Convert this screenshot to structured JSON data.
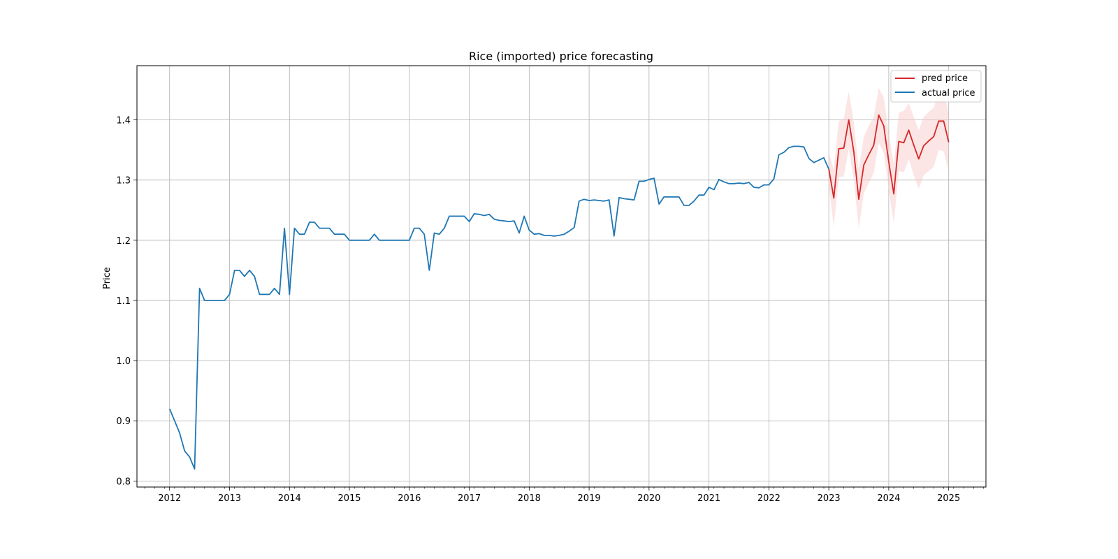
{
  "chart_data": {
    "type": "line",
    "title": "Rice (imported) price forecasting",
    "xlabel": "",
    "ylabel": "Price",
    "xlim": [
      "2011-06-15",
      "2025-08-15"
    ],
    "ylim": [
      0.79,
      1.49
    ],
    "x_ticks": [
      "2012",
      "2013",
      "2014",
      "2015",
      "2016",
      "2017",
      "2018",
      "2019",
      "2020",
      "2021",
      "2022",
      "2023",
      "2024",
      "2025"
    ],
    "y_ticks": [
      "0.8",
      "0.9",
      "1.0",
      "1.1",
      "1.2",
      "1.3",
      "1.4"
    ],
    "grid": true,
    "legend_position": "top-right",
    "colors": {
      "pred": "#d62728",
      "actual": "#1f77b4",
      "band": "#f7c6c6"
    },
    "series": [
      {
        "name": "pred price",
        "start": "2023-01",
        "values": [
          1.318,
          1.27,
          1.352,
          1.353,
          1.4,
          1.347,
          1.268,
          1.325,
          1.342,
          1.358,
          1.408,
          1.39,
          1.33,
          1.277,
          1.364,
          1.362,
          1.383,
          1.358,
          1.335,
          1.357,
          1.365,
          1.372,
          1.398,
          1.398,
          1.363
        ],
        "lower": [
          1.29,
          1.222,
          1.305,
          1.306,
          1.352,
          1.3,
          1.22,
          1.278,
          1.295,
          1.312,
          1.362,
          1.345,
          1.285,
          1.228,
          1.315,
          1.313,
          1.335,
          1.308,
          1.285,
          1.308,
          1.315,
          1.322,
          1.35,
          1.348,
          1.315
        ],
        "upper": [
          1.345,
          1.318,
          1.398,
          1.402,
          1.447,
          1.395,
          1.318,
          1.372,
          1.39,
          1.405,
          1.453,
          1.437,
          1.378,
          1.325,
          1.412,
          1.415,
          1.428,
          1.405,
          1.382,
          1.405,
          1.413,
          1.42,
          1.446,
          1.447,
          1.41
        ]
      },
      {
        "name": "actual price",
        "start": "2012-01",
        "values": [
          0.92,
          0.9,
          0.88,
          0.85,
          0.84,
          0.82,
          1.12,
          1.1,
          1.1,
          1.1,
          1.1,
          1.1,
          1.11,
          1.15,
          1.15,
          1.14,
          1.15,
          1.14,
          1.11,
          1.11,
          1.11,
          1.12,
          1.11,
          1.22,
          1.11,
          1.22,
          1.21,
          1.21,
          1.23,
          1.23,
          1.22,
          1.22,
          1.22,
          1.21,
          1.21,
          1.21,
          1.2,
          1.2,
          1.2,
          1.2,
          1.2,
          1.21,
          1.2,
          1.2,
          1.2,
          1.2,
          1.2,
          1.2,
          1.2,
          1.22,
          1.22,
          1.21,
          1.15,
          1.212,
          1.21,
          1.22,
          1.24,
          1.24,
          1.24,
          1.24,
          1.231,
          1.244,
          1.243,
          1.241,
          1.243,
          1.235,
          1.233,
          1.232,
          1.231,
          1.232,
          1.212,
          1.24,
          1.217,
          1.21,
          1.211,
          1.208,
          1.208,
          1.207,
          1.208,
          1.21,
          1.215,
          1.221,
          1.265,
          1.268,
          1.266,
          1.267,
          1.266,
          1.265,
          1.267,
          1.207,
          1.271,
          1.269,
          1.268,
          1.267,
          1.298,
          1.298,
          1.301,
          1.303,
          1.26,
          1.272,
          1.272,
          1.272,
          1.272,
          1.258,
          1.258,
          1.265,
          1.275,
          1.275,
          1.288,
          1.284,
          1.301,
          1.297,
          1.294,
          1.294,
          1.295,
          1.294,
          1.296,
          1.288,
          1.287,
          1.292,
          1.292,
          1.302,
          1.342,
          1.346,
          1.354,
          1.356,
          1.356,
          1.355,
          1.336,
          1.329,
          1.333,
          1.337,
          1.318
        ]
      }
    ]
  }
}
